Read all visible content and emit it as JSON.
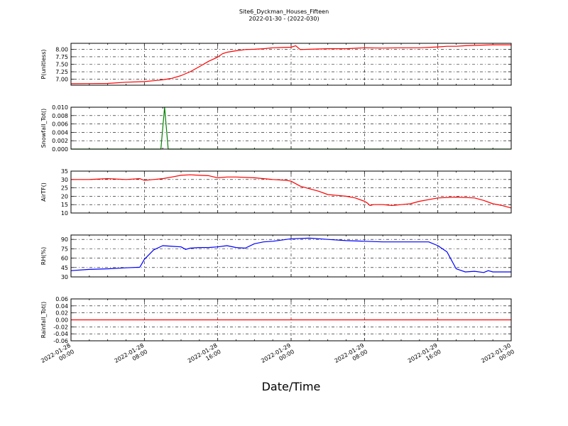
{
  "chart_data": {
    "title": "Site6_Dyckman_Houses_Fifteen",
    "subtitle": "2022-01-30 - (2022-030)",
    "xlabel": "Date/Time",
    "x_ticks": [
      [
        "2022-01-28",
        "00:00"
      ],
      [
        "2022-01-28",
        "08:00"
      ],
      [
        "2022-01-28",
        "16:00"
      ],
      [
        "2022-01-29",
        "00:00"
      ],
      [
        "2022-01-29",
        "08:00"
      ],
      [
        "2022-01-29",
        "16:00"
      ],
      [
        "2022-01-30",
        "00:00"
      ]
    ],
    "x_range_hours": [
      0,
      48
    ],
    "panels": [
      {
        "type": "line",
        "ylabel": "P(unitless)",
        "color": "#ff0000",
        "ylim": [
          6.8,
          8.2
        ],
        "yticks": [
          7.0,
          7.25,
          7.5,
          7.75,
          8.0
        ],
        "ytick_labels": [
          "7.00",
          "7.25",
          "7.50",
          "7.75",
          "8.00"
        ],
        "x": [
          0,
          4,
          6,
          8,
          9,
          10,
          11,
          12,
          13,
          14,
          15,
          16,
          16.5,
          17,
          18,
          19,
          20,
          21,
          22,
          23,
          24,
          24.5,
          25,
          26,
          28,
          30,
          32,
          34,
          36,
          38,
          40,
          41,
          42,
          43,
          44,
          46,
          48
        ],
        "y": [
          6.85,
          6.86,
          6.9,
          6.92,
          6.95,
          6.98,
          7.03,
          7.12,
          7.25,
          7.42,
          7.6,
          7.74,
          7.85,
          7.9,
          7.95,
          7.99,
          8.0,
          8.02,
          8.05,
          8.06,
          8.07,
          8.12,
          7.99,
          8.0,
          8.02,
          8.02,
          8.05,
          8.04,
          8.05,
          8.05,
          8.08,
          8.1,
          8.1,
          8.12,
          8.13,
          8.15,
          8.15
        ]
      },
      {
        "type": "line",
        "ylabel": "Snowfall_Tot()",
        "color": "#008000",
        "ylim": [
          0,
          0.01
        ],
        "yticks": [
          0.0,
          0.002,
          0.004,
          0.006,
          0.008,
          0.01
        ],
        "ytick_labels": [
          "0.000",
          "0.002",
          "0.004",
          "0.006",
          "0.008",
          "0.010"
        ],
        "x": [
          0,
          9.8,
          10.2,
          10.6,
          48
        ],
        "y": [
          0,
          0,
          0.01,
          0,
          0
        ]
      },
      {
        "type": "line",
        "ylabel": "AirTF()",
        "color": "#ff0000",
        "ylim": [
          10,
          35
        ],
        "yticks": [
          10,
          15,
          20,
          25,
          30,
          35
        ],
        "ytick_labels": [
          "10",
          "15",
          "20",
          "25",
          "30",
          "35"
        ],
        "x": [
          0,
          2,
          4,
          6,
          7.5,
          8,
          9,
          10,
          11,
          12,
          13,
          14,
          15,
          16,
          17,
          18,
          20,
          22,
          23.5,
          24,
          25,
          26,
          27,
          28,
          29,
          30,
          31,
          32,
          32.3,
          32.6,
          33,
          34,
          35,
          36,
          37,
          38,
          40,
          42,
          44,
          45,
          46,
          47,
          48
        ],
        "y": [
          30,
          30,
          30.5,
          30,
          30.5,
          29.5,
          30,
          30.5,
          31.5,
          32.5,
          32.8,
          32.5,
          32.3,
          31,
          31.5,
          31.5,
          31,
          30,
          29.5,
          29,
          26,
          24.5,
          23,
          21,
          20.5,
          20,
          19,
          17,
          16,
          14.5,
          15,
          15,
          14.5,
          15,
          15.5,
          17,
          19,
          19.5,
          19,
          17.5,
          15.5,
          14.5,
          13
        ]
      },
      {
        "type": "line",
        "ylabel": "RH(%)",
        "color": "#0000ff",
        "ylim": [
          30,
          97
        ],
        "yticks": [
          30,
          45,
          60,
          75,
          90
        ],
        "ytick_labels": [
          "30",
          "45",
          "60",
          "75",
          "90"
        ],
        "x": [
          0,
          2,
          4,
          6,
          7.5,
          8,
          9,
          10,
          11,
          12,
          12.5,
          13,
          14,
          15,
          16,
          17,
          18,
          19,
          20,
          21,
          22,
          24,
          26,
          28,
          30,
          32,
          34,
          36,
          38,
          39,
          40,
          41,
          42,
          43,
          44,
          45,
          45.5,
          46,
          47,
          48
        ],
        "y": [
          40,
          42,
          43,
          44.5,
          45.5,
          58,
          73,
          80,
          79,
          78,
          74,
          76,
          77,
          77,
          78,
          80,
          77,
          76,
          83,
          86,
          87,
          91,
          92,
          90,
          88,
          87,
          86,
          86,
          86,
          86,
          80,
          70,
          43,
          38,
          39,
          37,
          40,
          38,
          38,
          38
        ]
      },
      {
        "type": "line",
        "ylabel": "Rainfall_Tot()",
        "color": "#ff0000",
        "ylim": [
          -0.06,
          0.06
        ],
        "yticks": [
          -0.06,
          -0.04,
          -0.02,
          0.0,
          0.02,
          0.04,
          0.06
        ],
        "ytick_labels": [
          "-0.06",
          "-0.04",
          "-0.02",
          "0.00",
          "0.02",
          "0.04",
          "0.06"
        ],
        "x": [
          0,
          48
        ],
        "y": [
          0,
          0
        ]
      }
    ]
  }
}
